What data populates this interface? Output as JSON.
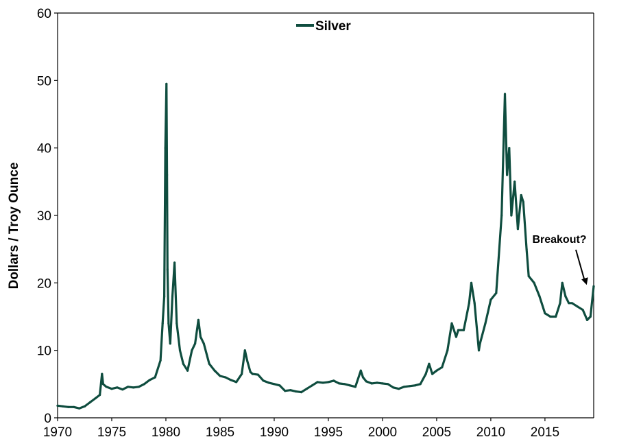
{
  "chart_data": {
    "type": "line",
    "title": "",
    "xlabel": "",
    "ylabel": "Dollars / Troy Ounce",
    "xlim": [
      1970,
      2019.5
    ],
    "ylim": [
      0,
      60
    ],
    "x_ticks": [
      1970,
      1975,
      1980,
      1985,
      1990,
      1995,
      2000,
      2005,
      2010,
      2015
    ],
    "y_ticks": [
      0,
      10,
      20,
      30,
      40,
      50,
      60
    ],
    "grid": false,
    "legend": {
      "position": "top-center"
    },
    "series": [
      {
        "name": "Silver",
        "color": "#0f4d3f",
        "x": [
          1970.0,
          1970.5,
          1971.0,
          1971.5,
          1972.0,
          1972.5,
          1973.0,
          1973.5,
          1973.9,
          1974.1,
          1974.2,
          1974.5,
          1975.0,
          1975.5,
          1976.0,
          1976.5,
          1977.0,
          1977.5,
          1978.0,
          1978.5,
          1979.0,
          1979.5,
          1979.7,
          1979.85,
          1979.95,
          1980.05,
          1980.1,
          1980.15,
          1980.25,
          1980.4,
          1980.6,
          1980.8,
          1981.0,
          1981.3,
          1981.6,
          1982.0,
          1982.4,
          1982.7,
          1983.0,
          1983.2,
          1983.5,
          1984.0,
          1984.5,
          1985.0,
          1985.5,
          1986.0,
          1986.5,
          1987.0,
          1987.3,
          1987.5,
          1987.8,
          1988.0,
          1988.5,
          1989.0,
          1989.5,
          1990.0,
          1990.5,
          1991.0,
          1991.5,
          1992.0,
          1992.5,
          1993.0,
          1993.5,
          1994.0,
          1994.5,
          1995.0,
          1995.5,
          1996.0,
          1996.5,
          1997.0,
          1997.5,
          1998.0,
          1998.2,
          1998.5,
          1999.0,
          1999.5,
          2000.0,
          2000.5,
          2001.0,
          2001.5,
          2002.0,
          2002.5,
          2003.0,
          2003.5,
          2004.0,
          2004.3,
          2004.6,
          2005.0,
          2005.5,
          2006.0,
          2006.4,
          2006.8,
          2007.0,
          2007.5,
          2008.0,
          2008.2,
          2008.5,
          2008.9,
          2009.0,
          2009.5,
          2010.0,
          2010.5,
          2011.0,
          2011.3,
          2011.5,
          2011.7,
          2011.9,
          2012.2,
          2012.5,
          2012.8,
          2013.0,
          2013.3,
          2013.5,
          2014.0,
          2014.5,
          2015.0,
          2015.5,
          2016.0,
          2016.4,
          2016.6,
          2016.9,
          2017.2,
          2017.5,
          2018.0,
          2018.5,
          2018.9,
          2019.2,
          2019.5
        ],
        "values": [
          1.8,
          1.7,
          1.6,
          1.6,
          1.4,
          1.7,
          2.3,
          2.9,
          3.4,
          6.5,
          5.0,
          4.6,
          4.3,
          4.5,
          4.2,
          4.6,
          4.5,
          4.6,
          5.0,
          5.6,
          6.0,
          8.5,
          14.0,
          18.0,
          40.0,
          49.5,
          36.0,
          22.0,
          14.0,
          11.0,
          18.0,
          23.0,
          14.0,
          10.0,
          8.0,
          7.0,
          10.0,
          11.0,
          14.5,
          12.0,
          11.0,
          8.0,
          7.0,
          6.2,
          6.0,
          5.6,
          5.3,
          6.5,
          10.0,
          8.5,
          6.8,
          6.5,
          6.4,
          5.5,
          5.2,
          5.0,
          4.8,
          4.0,
          4.1,
          3.9,
          3.8,
          4.3,
          4.8,
          5.3,
          5.2,
          5.3,
          5.5,
          5.1,
          5.0,
          4.8,
          4.6,
          7.0,
          6.0,
          5.4,
          5.1,
          5.2,
          5.1,
          5.0,
          4.5,
          4.3,
          4.6,
          4.7,
          4.8,
          5.0,
          6.5,
          8.0,
          6.5,
          7.0,
          7.5,
          10.0,
          14.0,
          12.0,
          13.0,
          13.0,
          17.0,
          20.0,
          17.0,
          10.0,
          11.0,
          14.0,
          17.5,
          18.5,
          30.0,
          48.0,
          36.0,
          40.0,
          30.0,
          35.0,
          28.0,
          33.0,
          32.0,
          25.0,
          21.0,
          20.0,
          18.0,
          15.5,
          15.0,
          15.0,
          17.0,
          20.0,
          18.0,
          17.0,
          17.0,
          16.5,
          16.0,
          14.5,
          15.0,
          19.5
        ]
      }
    ],
    "annotations": [
      {
        "text": "Breakout?",
        "x": 2019.3,
        "y": 20.0
      }
    ]
  }
}
